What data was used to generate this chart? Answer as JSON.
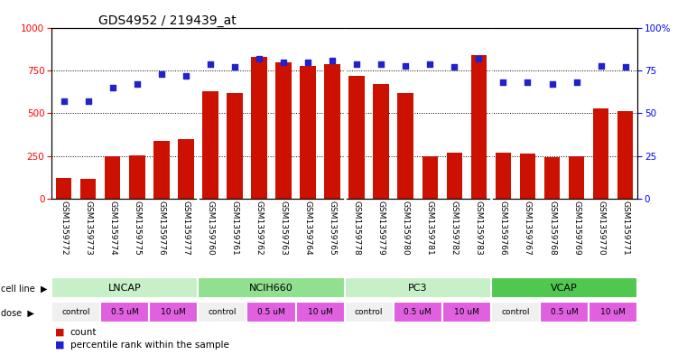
{
  "title": "GDS4952 / 219439_at",
  "samples": [
    "GSM1359772",
    "GSM1359773",
    "GSM1359774",
    "GSM1359775",
    "GSM1359776",
    "GSM1359777",
    "GSM1359760",
    "GSM1359761",
    "GSM1359762",
    "GSM1359763",
    "GSM1359764",
    "GSM1359765",
    "GSM1359778",
    "GSM1359779",
    "GSM1359780",
    "GSM1359781",
    "GSM1359782",
    "GSM1359783",
    "GSM1359766",
    "GSM1359767",
    "GSM1359768",
    "GSM1359769",
    "GSM1359770",
    "GSM1359771"
  ],
  "counts": [
    120,
    115,
    245,
    255,
    340,
    350,
    630,
    620,
    830,
    800,
    780,
    790,
    720,
    670,
    620,
    250,
    270,
    840,
    270,
    265,
    240,
    250,
    530,
    510
  ],
  "percentile_ranks": [
    57,
    57,
    65,
    67,
    73,
    72,
    79,
    77,
    82,
    80,
    80,
    81,
    79,
    79,
    78,
    79,
    77,
    82,
    68,
    68,
    67,
    68,
    78,
    77
  ],
  "cell_lines": [
    {
      "name": "LNCAP",
      "start": 0,
      "end": 6,
      "color": "#c8f0c8"
    },
    {
      "name": "NCIH660",
      "start": 6,
      "end": 12,
      "color": "#90e090"
    },
    {
      "name": "PC3",
      "start": 12,
      "end": 18,
      "color": "#c8f0c8"
    },
    {
      "name": "VCAP",
      "start": 18,
      "end": 24,
      "color": "#50c850"
    }
  ],
  "dose_groups": [
    [
      [
        "control",
        0,
        2,
        "#f0f0f0"
      ],
      [
        "0.5 uM",
        2,
        4,
        "#e060e0"
      ],
      [
        "10 uM",
        4,
        6,
        "#e060e0"
      ]
    ],
    [
      [
        "control",
        6,
        8,
        "#f0f0f0"
      ],
      [
        "0.5 uM",
        8,
        10,
        "#e060e0"
      ],
      [
        "10 uM",
        10,
        12,
        "#e060e0"
      ]
    ],
    [
      [
        "control",
        12,
        14,
        "#f0f0f0"
      ],
      [
        "0.5 uM",
        14,
        16,
        "#e060e0"
      ],
      [
        "10 uM",
        16,
        18,
        "#e060e0"
      ]
    ],
    [
      [
        "control",
        18,
        20,
        "#f0f0f0"
      ],
      [
        "0.5 uM",
        20,
        22,
        "#e060e0"
      ],
      [
        "10 uM",
        22,
        24,
        "#e060e0"
      ]
    ]
  ],
  "bar_color": "#cc1100",
  "dot_color": "#2222cc",
  "ylim_left": [
    0,
    1000
  ],
  "ylim_right": [
    0,
    100
  ],
  "yticks_left": [
    0,
    250,
    500,
    750,
    1000
  ],
  "yticks_right": [
    0,
    25,
    50,
    75,
    100
  ],
  "background_color": "#ffffff",
  "title_fontsize": 10,
  "tick_fontsize": 6.5,
  "label_fontsize": 8
}
